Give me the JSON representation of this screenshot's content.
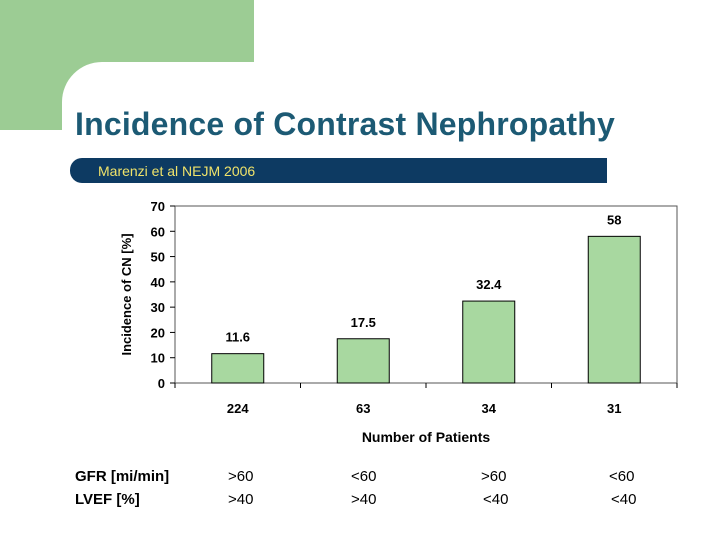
{
  "title": "Incidence of Contrast Nephropathy",
  "citation": "Marenzi et al NEJM 2006",
  "colors": {
    "accent": "#9ccc94",
    "title": "#1c5a74",
    "citation_bar": "#0d3a62",
    "citation_text": "#f0e36a",
    "bar": "#a8d8a0"
  },
  "chart_data": {
    "type": "bar",
    "title": "",
    "xlabel": "Number of Patients",
    "ylabel": "Incidence of CN [%]",
    "categories": [
      "224",
      "63",
      "34",
      "31"
    ],
    "values": [
      11.6,
      17.5,
      32.4,
      58
    ],
    "value_labels": [
      "11.6",
      "17.5",
      "32.4",
      "58"
    ],
    "ylim": [
      0,
      70
    ],
    "yticks": [
      "0",
      "10",
      "20",
      "30",
      "40",
      "50",
      "60",
      "70"
    ],
    "grid": false,
    "legend": "none"
  },
  "table": {
    "rows": [
      {
        "label": "GFR [mi/min]",
        "values": [
          ">60",
          "<60",
          ">60",
          "<60"
        ]
      },
      {
        "label": "LVEF [%]",
        "values": [
          ">40",
          ">40",
          "<40",
          "<40"
        ]
      }
    ]
  }
}
